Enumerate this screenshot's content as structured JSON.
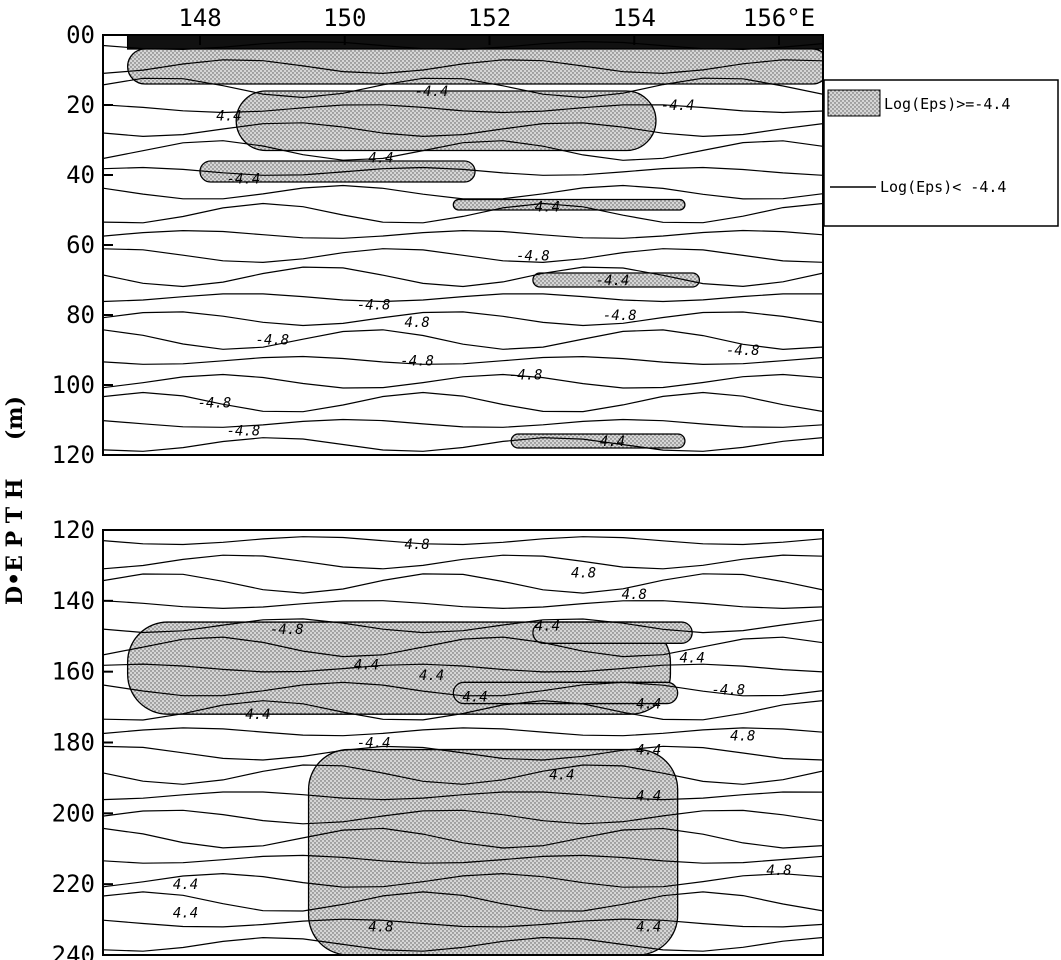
{
  "chart_data": [
    {
      "type": "contour",
      "panel": "upper",
      "x_ticks": [
        "148",
        "150",
        "152",
        "154",
        "156°E"
      ],
      "x_tick_values": [
        148,
        150,
        152,
        154,
        156
      ],
      "xlim": [
        146.9,
        156.7
      ],
      "y_ticks": [
        "00",
        "20",
        "40",
        "60",
        "80",
        "100",
        "120"
      ],
      "y_tick_values": [
        0,
        20,
        40,
        60,
        80,
        100,
        120
      ],
      "ylim": [
        0,
        120
      ],
      "y_inverted": true,
      "contour_levels": [
        -4.8,
        -4.4
      ],
      "shaded_regions": [
        {
          "lon": [
            147.0,
            156.7
          ],
          "depth": [
            0,
            4
          ],
          "fill": "solid"
        },
        {
          "lon": [
            147.0,
            156.7
          ],
          "depth": [
            4,
            14
          ],
          "fill": "dotted"
        },
        {
          "lon": [
            148.5,
            154.3
          ],
          "depth": [
            16,
            33
          ],
          "fill": "dotted"
        },
        {
          "lon": [
            148.0,
            151.8
          ],
          "depth": [
            36,
            42
          ],
          "fill": "dotted"
        },
        {
          "lon": [
            151.5,
            154.7
          ],
          "depth": [
            47,
            50
          ],
          "fill": "dotted"
        },
        {
          "lon": [
            152.6,
            154.9
          ],
          "depth": [
            68,
            72
          ],
          "fill": "dotted"
        },
        {
          "lon": [
            152.3,
            154.7
          ],
          "depth": [
            114,
            118
          ],
          "fill": "dotted"
        }
      ],
      "contour_labels": [
        {
          "text": "-4.4",
          "lon": 151.2,
          "depth": 16
        },
        {
          "text": "-4.4",
          "lon": 154.6,
          "depth": 20
        },
        {
          "text": "4.4",
          "lon": 148.4,
          "depth": 23
        },
        {
          "text": "4.4",
          "lon": 150.5,
          "depth": 35
        },
        {
          "text": "-4.4",
          "lon": 148.6,
          "depth": 41
        },
        {
          "text": "4.4",
          "lon": 152.8,
          "depth": 49
        },
        {
          "text": "-4.8",
          "lon": 152.6,
          "depth": 63
        },
        {
          "text": "-4.4",
          "lon": 153.7,
          "depth": 70
        },
        {
          "text": "-4.8",
          "lon": 150.4,
          "depth": 77
        },
        {
          "text": "-4.8",
          "lon": 153.8,
          "depth": 80
        },
        {
          "text": "4.8",
          "lon": 151.0,
          "depth": 82
        },
        {
          "text": "-4.8",
          "lon": 149.0,
          "depth": 87
        },
        {
          "text": "-4.8",
          "lon": 155.5,
          "depth": 90
        },
        {
          "text": "-4.8",
          "lon": 151.0,
          "depth": 93
        },
        {
          "text": "-4.8",
          "lon": 152.5,
          "depth": 97
        },
        {
          "text": "-4.8",
          "lon": 148.2,
          "depth": 105
        },
        {
          "text": "-4.8",
          "lon": 148.6,
          "depth": 113
        },
        {
          "text": "4.4",
          "lon": 153.7,
          "depth": 116
        }
      ]
    },
    {
      "type": "contour",
      "panel": "lower",
      "y_ticks": [
        "120",
        "140",
        "160",
        "180",
        "200",
        "220",
        "240"
      ],
      "y_tick_values": [
        120,
        140,
        160,
        180,
        200,
        220,
        240
      ],
      "ylim": [
        120,
        240
      ],
      "y_inverted": true,
      "contour_levels": [
        -4.8,
        -4.4
      ],
      "shaded_regions": [
        {
          "lon": [
            147.0,
            154.5
          ],
          "depth": [
            146,
            172
          ],
          "fill": "dotted"
        },
        {
          "lon": [
            149.5,
            154.6
          ],
          "depth": [
            182,
            240
          ],
          "fill": "dotted"
        },
        {
          "lon": [
            152.6,
            154.8
          ],
          "depth": [
            146,
            152
          ],
          "fill": "dotted"
        },
        {
          "lon": [
            151.5,
            154.6
          ],
          "depth": [
            163,
            169
          ],
          "fill": "dotted"
        }
      ],
      "contour_labels": [
        {
          "text": "4.8",
          "lon": 151.0,
          "depth": 124
        },
        {
          "text": "4.8",
          "lon": 153.3,
          "depth": 132
        },
        {
          "text": "4.8",
          "lon": 154.0,
          "depth": 138
        },
        {
          "text": "-4.8",
          "lon": 149.2,
          "depth": 148
        },
        {
          "text": "4.4",
          "lon": 152.8,
          "depth": 147
        },
        {
          "text": "4.4",
          "lon": 154.8,
          "depth": 156
        },
        {
          "text": "4.4",
          "lon": 150.3,
          "depth": 158
        },
        {
          "text": "4.4",
          "lon": 151.2,
          "depth": 161
        },
        {
          "text": "4.4",
          "lon": 151.8,
          "depth": 167
        },
        {
          "text": "-4.8",
          "lon": 155.3,
          "depth": 165
        },
        {
          "text": "4.4",
          "lon": 154.2,
          "depth": 169
        },
        {
          "text": "4.4",
          "lon": 148.8,
          "depth": 172
        },
        {
          "text": "4.8",
          "lon": 155.5,
          "depth": 178
        },
        {
          "text": "-4.4",
          "lon": 150.4,
          "depth": 180
        },
        {
          "text": "4.4",
          "lon": 154.2,
          "depth": 182
        },
        {
          "text": "4.4",
          "lon": 153.0,
          "depth": 189
        },
        {
          "text": "4.4",
          "lon": 154.2,
          "depth": 195
        },
        {
          "text": "4.8",
          "lon": 156.0,
          "depth": 216
        },
        {
          "text": "4.4",
          "lon": 147.8,
          "depth": 220
        },
        {
          "text": "4.4",
          "lon": 147.8,
          "depth": 228
        },
        {
          "text": "4.8",
          "lon": 150.5,
          "depth": 232
        },
        {
          "text": "4.4",
          "lon": 154.2,
          "depth": 232
        }
      ]
    }
  ],
  "ylabel": "D•E P T H     (m)",
  "legend": {
    "shaded_label": "Log(Eps)>=-4.4",
    "line_label": "Log(Eps)< -4.4",
    "position": "upper-right"
  },
  "colors": {
    "fill": "#c8c8c8",
    "dot": "#555555",
    "solid": "#111111",
    "line": "#000000"
  }
}
